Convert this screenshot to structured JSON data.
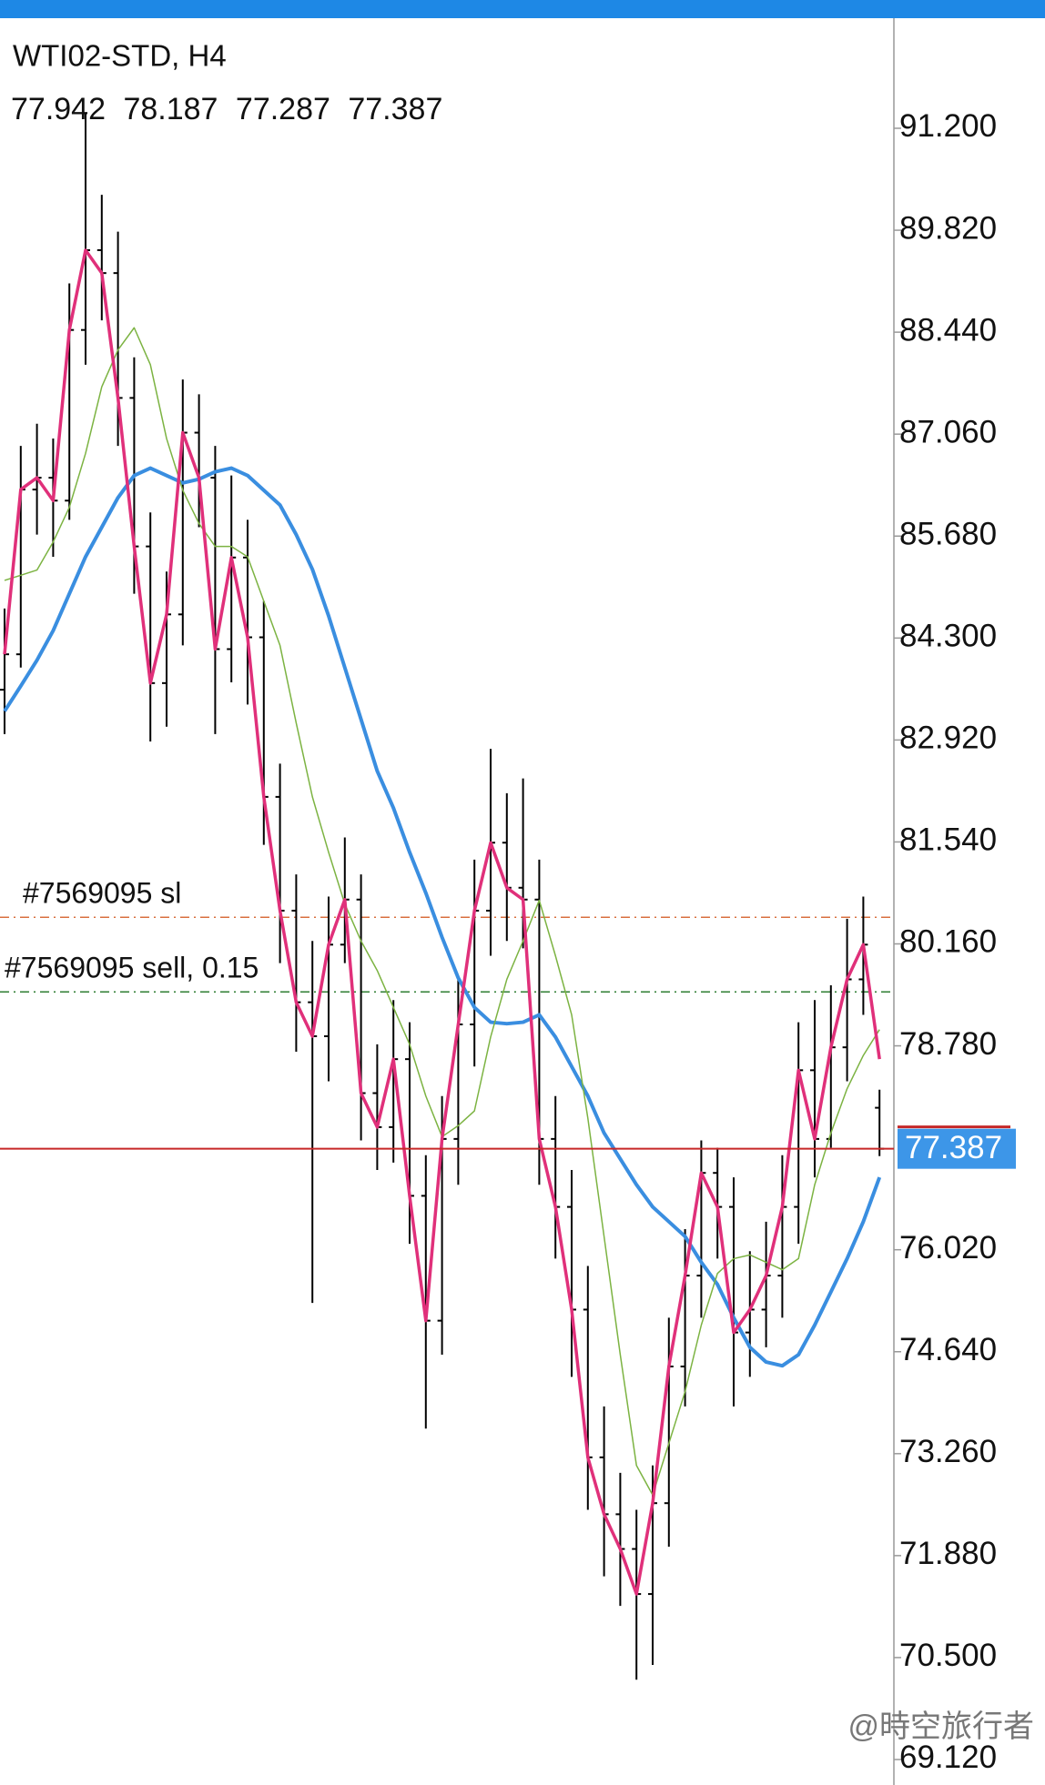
{
  "chart_data": {
    "type": "ohlc",
    "title": "WTI02-STD, H4",
    "bar_color": "#000000",
    "open": [
      83.6,
      84.08,
      86.31,
      86.47,
      86.16,
      88.47,
      89.55,
      89.24,
      87.55,
      85.54,
      83.69,
      84.62,
      87.08,
      86.47,
      84.15,
      85.39,
      84.31,
      82.15,
      80.61,
      79.37,
      78.91,
      80.15,
      80.76,
      78.14,
      77.68,
      78.6,
      76.75,
      75.06,
      77.52,
      79.07,
      80.61,
      81.53,
      80.92,
      80.76,
      77.52,
      76.6,
      75.21,
      73.21,
      72.44,
      71.97,
      71.36,
      72.59,
      74.44,
      75.67,
      77.06,
      76.6,
      74.9,
      75.21,
      75.67,
      76.6,
      78.45,
      77.52,
      78.76,
      79.68,
      77.942
    ],
    "high": [
      84.7,
      86.9,
      87.2,
      87.0,
      89.1,
      91.4,
      90.3,
      89.8,
      88.1,
      86.0,
      85.2,
      87.8,
      87.6,
      86.9,
      86.5,
      85.9,
      84.8,
      82.6,
      81.1,
      80.2,
      80.8,
      81.6,
      81.1,
      78.8,
      79.4,
      79.1,
      77.3,
      78.1,
      79.7,
      81.3,
      82.8,
      82.2,
      82.4,
      81.3,
      78.1,
      77.1,
      75.8,
      73.9,
      73.0,
      72.5,
      73.1,
      75.1,
      76.3,
      77.5,
      77.4,
      77.0,
      76.0,
      76.4,
      77.3,
      79.1,
      79.4,
      79.6,
      80.5,
      80.8,
      78.187
    ],
    "low": [
      83.0,
      83.9,
      85.7,
      85.4,
      85.9,
      88.0,
      88.6,
      86.9,
      84.9,
      82.9,
      83.1,
      84.2,
      85.8,
      83.0,
      83.7,
      83.4,
      81.5,
      79.9,
      78.7,
      75.3,
      78.3,
      79.9,
      77.5,
      77.1,
      77.2,
      76.1,
      73.6,
      74.6,
      76.9,
      78.5,
      80.0,
      80.2,
      80.1,
      76.9,
      75.9,
      74.3,
      72.5,
      71.6,
      71.2,
      70.2,
      70.4,
      72.0,
      73.9,
      75.1,
      75.9,
      73.9,
      74.3,
      74.7,
      75.1,
      76.1,
      77.0,
      77.4,
      78.3,
      79.2,
      77.287
    ],
    "close": [
      84.08,
      86.31,
      86.47,
      86.16,
      88.47,
      89.55,
      89.24,
      87.55,
      85.54,
      83.69,
      84.62,
      87.08,
      86.47,
      84.15,
      85.39,
      84.31,
      82.15,
      80.61,
      79.37,
      78.91,
      80.15,
      80.76,
      78.14,
      77.68,
      78.6,
      76.75,
      75.06,
      77.52,
      79.07,
      80.61,
      81.53,
      80.92,
      80.76,
      77.52,
      76.6,
      75.21,
      73.21,
      72.44,
      71.97,
      71.36,
      72.59,
      74.44,
      75.67,
      77.06,
      76.6,
      74.9,
      75.21,
      75.67,
      76.6,
      78.45,
      77.52,
      78.76,
      79.68,
      80.15,
      77.387
    ],
    "series": [
      {
        "color": "#3a8ee0",
        "width": 4,
        "values": [
          83.31,
          83.65,
          84.0,
          84.4,
          84.9,
          85.4,
          85.8,
          86.2,
          86.5,
          86.6,
          86.5,
          86.4,
          86.45,
          86.55,
          86.6,
          86.5,
          86.3,
          86.1,
          85.7,
          85.23,
          84.6,
          83.9,
          83.2,
          82.5,
          82.0,
          81.4,
          80.85,
          80.25,
          79.7,
          79.3,
          79.1,
          79.08,
          79.1,
          79.2,
          78.9,
          78.5,
          78.1,
          77.6,
          77.25,
          76.9,
          76.6,
          76.4,
          76.2,
          75.85,
          75.55,
          75.1,
          74.7,
          74.5,
          74.45,
          74.6,
          75.0,
          75.45,
          75.9,
          76.4,
          77.0
        ]
      },
      {
        "color": "#7cb342",
        "width": 1.5,
        "values": [
          85.08,
          85.15,
          85.22,
          85.6,
          86.07,
          86.8,
          87.7,
          88.2,
          88.5,
          88.0,
          87.0,
          86.3,
          85.85,
          85.54,
          85.54,
          85.4,
          84.8,
          84.2,
          83.15,
          82.15,
          81.4,
          80.7,
          80.2,
          79.8,
          79.3,
          78.8,
          78.1,
          77.55,
          77.7,
          77.9,
          78.9,
          79.68,
          80.2,
          80.75,
          80.0,
          79.2,
          77.8,
          76.2,
          74.6,
          73.1,
          72.7,
          73.4,
          74.1,
          75.0,
          75.7,
          75.9,
          75.95,
          75.85,
          75.75,
          75.9,
          76.9,
          77.6,
          78.2,
          78.65,
          79.0
        ]
      },
      {
        "color": "#e0307a",
        "width": 3.5,
        "values": [
          84.08,
          86.31,
          86.47,
          86.16,
          88.47,
          89.55,
          89.24,
          87.55,
          85.54,
          83.69,
          84.62,
          87.08,
          86.47,
          84.15,
          85.39,
          84.31,
          82.15,
          80.61,
          79.37,
          78.91,
          80.15,
          80.76,
          78.14,
          77.68,
          78.6,
          76.75,
          75.06,
          77.52,
          79.07,
          80.61,
          81.53,
          80.92,
          80.76,
          77.52,
          76.6,
          75.21,
          73.21,
          72.44,
          71.97,
          71.36,
          72.59,
          74.44,
          75.67,
          77.06,
          76.6,
          74.9,
          75.21,
          75.67,
          76.6,
          78.45,
          77.52,
          78.76,
          79.68,
          80.15,
          78.6
        ]
      }
    ],
    "ylim": [
      68.775,
      92.69
    ],
    "yticks": [
      {
        "value": 91.2,
        "label": "91.200"
      },
      {
        "value": 89.82,
        "label": "89.820"
      },
      {
        "value": 88.44,
        "label": "88.440"
      },
      {
        "value": 87.06,
        "label": "87.060"
      },
      {
        "value": 85.68,
        "label": "85.680"
      },
      {
        "value": 84.3,
        "label": "84.300"
      },
      {
        "value": 82.92,
        "label": "82.920"
      },
      {
        "value": 81.54,
        "label": "81.540"
      },
      {
        "value": 80.16,
        "label": "80.160"
      },
      {
        "value": 78.78,
        "label": "78.780"
      },
      {
        "value": 76.02,
        "label": "76.020"
      },
      {
        "value": 74.64,
        "label": "74.640"
      },
      {
        "value": 73.26,
        "label": "73.260"
      },
      {
        "value": 71.88,
        "label": "71.880"
      },
      {
        "value": 70.5,
        "label": "70.500"
      },
      {
        "value": 69.12,
        "label": "69.120"
      }
    ],
    "levels": [
      {
        "label": "#7569095 sl",
        "value": 80.52,
        "color": "#d9703f"
      },
      {
        "label": "#7569095 sell, 0.15",
        "value": 79.51,
        "color": "#2e7d32"
      }
    ],
    "price_line_color": "#c62828",
    "price_label_color": "#3d96e8",
    "watermark": "@時空旅行者"
  }
}
